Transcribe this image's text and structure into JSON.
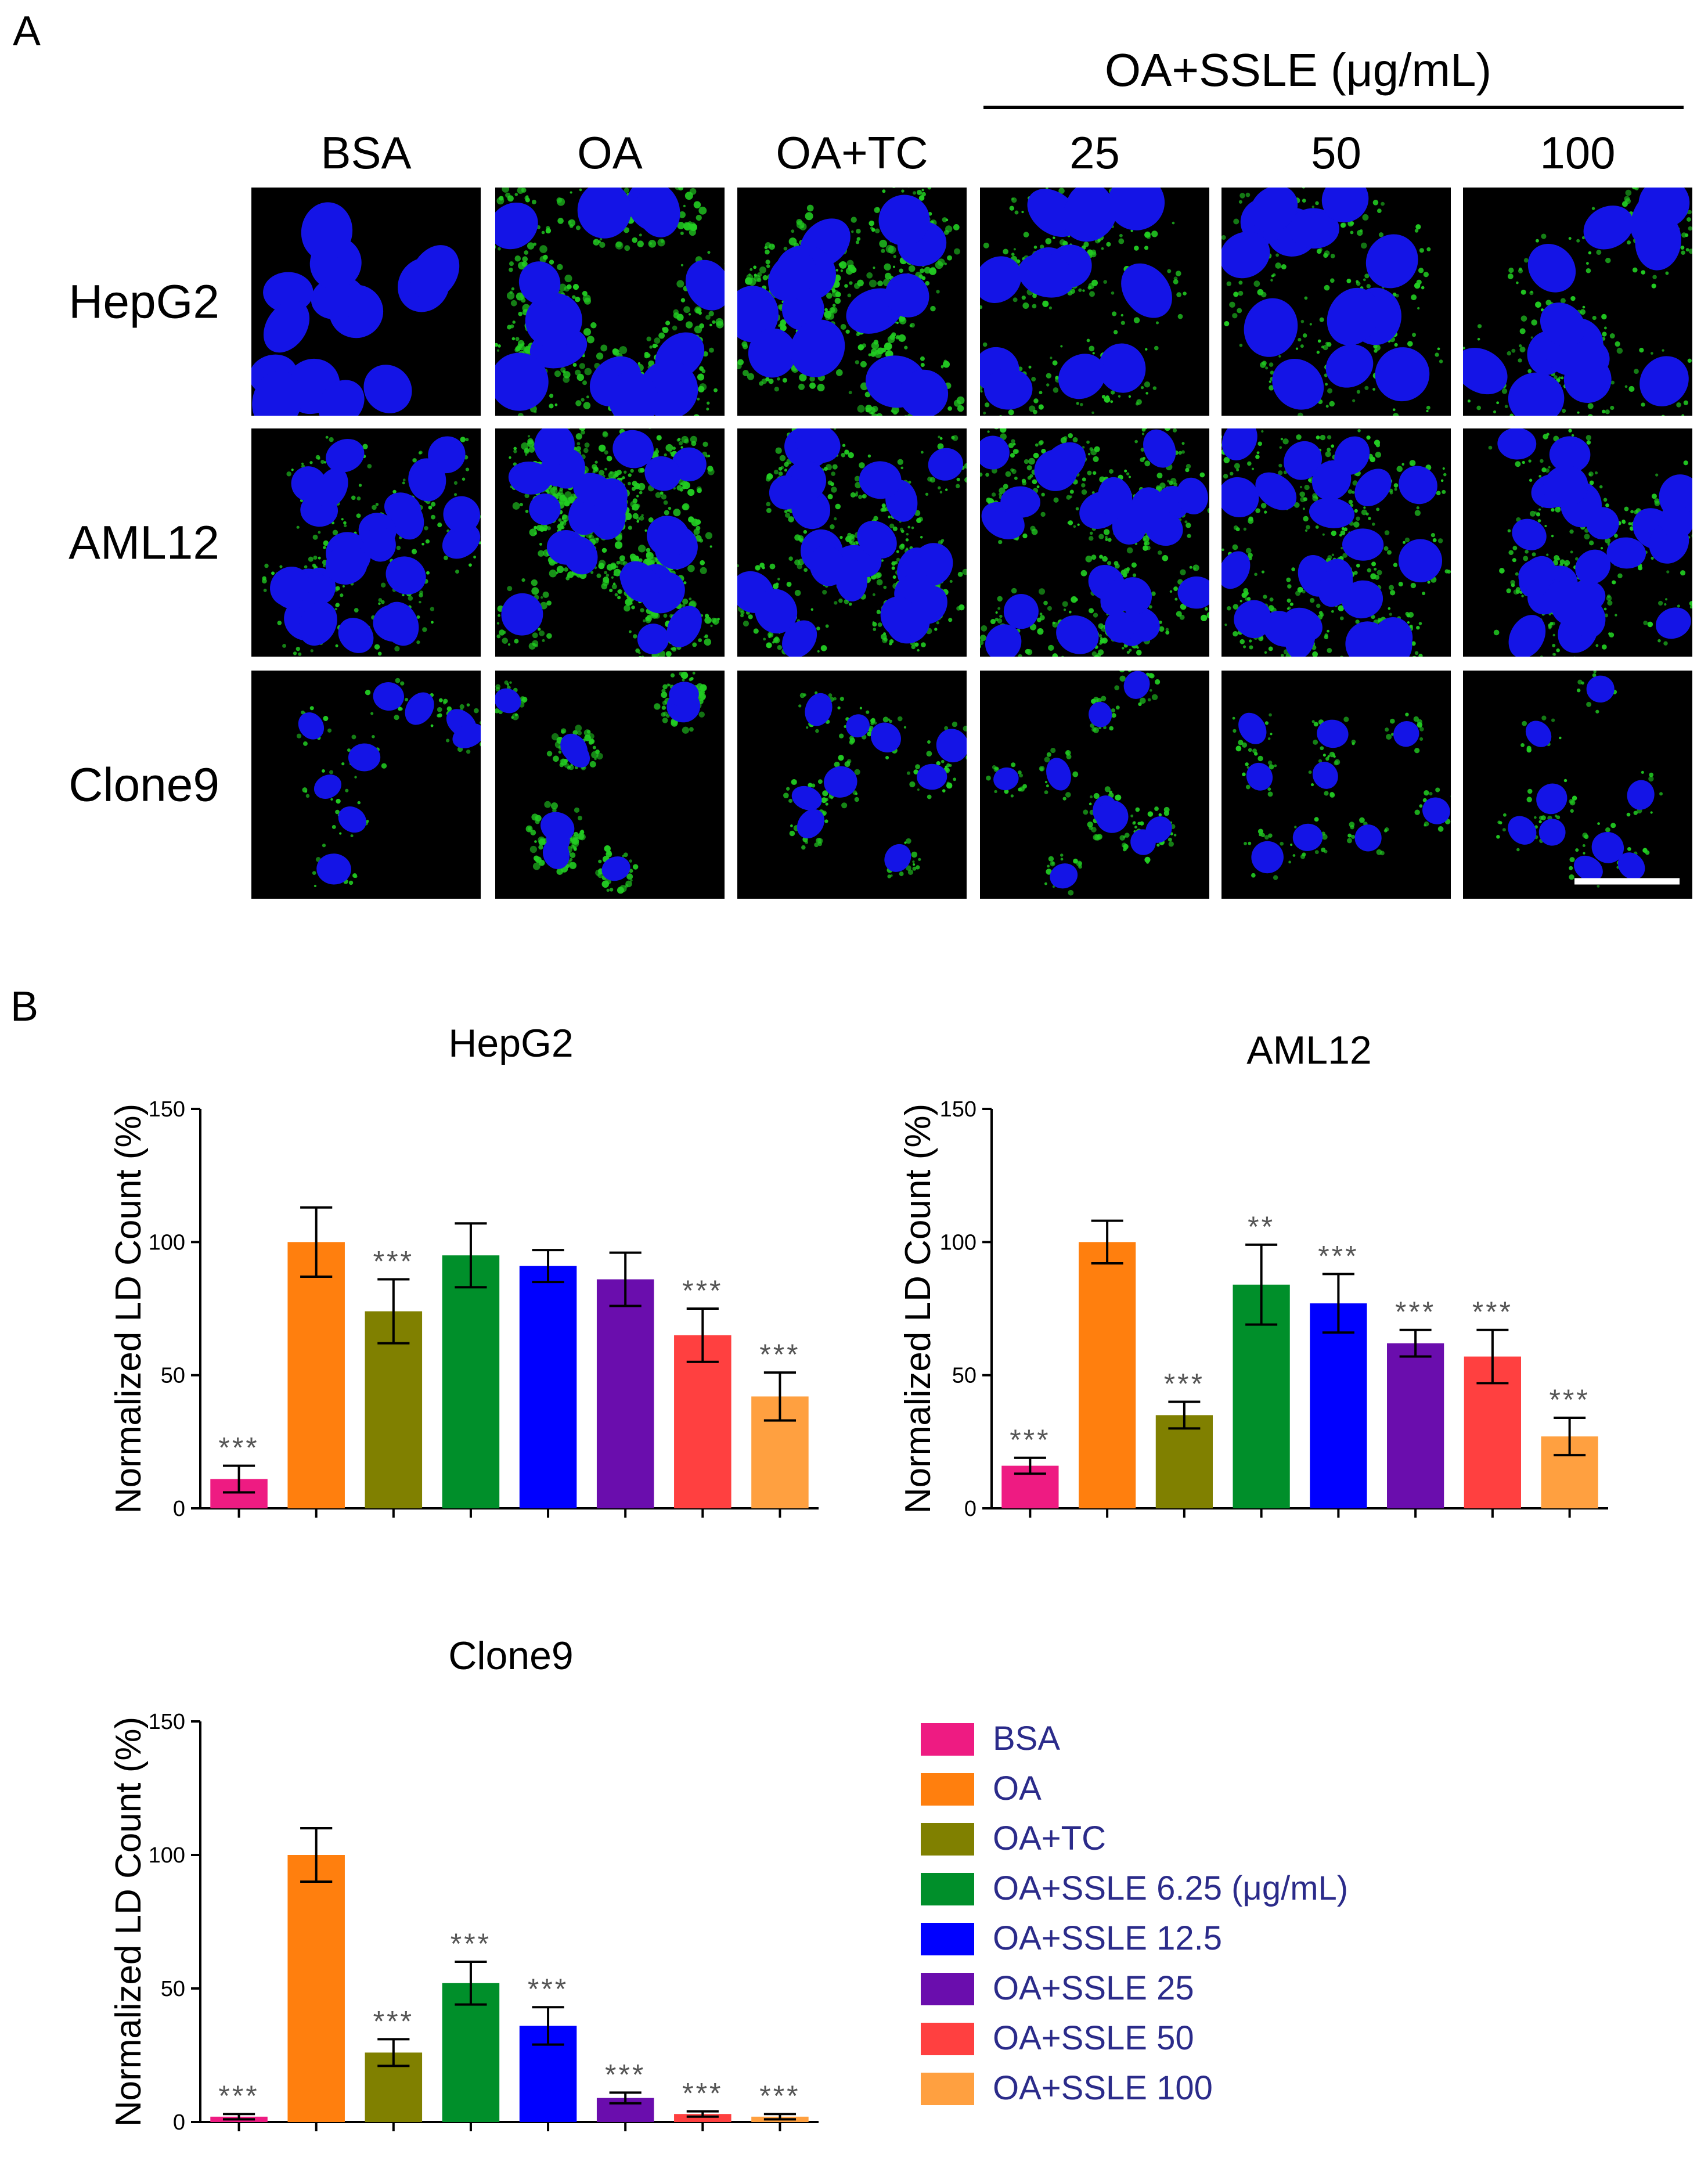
{
  "panel_a": {
    "label": "A",
    "group_header": "OA+SSLE (μg/mL)",
    "columns": [
      "BSA",
      "OA",
      "OA+TC",
      "25",
      "50",
      "100"
    ],
    "rows": [
      "HepG2",
      "AML12",
      "Clone9"
    ],
    "colors": {
      "nucleus": "#1414e6",
      "lipid": "#22cc22",
      "background": "#000000"
    },
    "intensity": [
      [
        0.0,
        1.0,
        1.0,
        0.55,
        0.5,
        0.45
      ],
      [
        0.25,
        0.9,
        0.55,
        0.6,
        0.45,
        0.35
      ],
      [
        0.25,
        0.8,
        0.45,
        0.45,
        0.35,
        0.25
      ]
    ]
  },
  "panel_b": {
    "label": "B"
  },
  "legend": {
    "entries": [
      {
        "label": "BSA",
        "color": "#ee1b82"
      },
      {
        "label": "OA",
        "color": "#ff7f0e"
      },
      {
        "label": "OA+TC",
        "color": "#808000"
      },
      {
        "label": "OA+SSLE 6.25 (μg/mL)",
        "color": "#008f2a"
      },
      {
        "label": "OA+SSLE 12.5",
        "color": "#0000ff"
      },
      {
        "label": "OA+SSLE 25",
        "color": "#6a0dad"
      },
      {
        "label": "OA+SSLE 50",
        "color": "#ff4040"
      },
      {
        "label": "OA+SSLE 100",
        "color": "#ffa040"
      }
    ],
    "text_color": "#2b2b8a"
  },
  "chart_data": [
    {
      "type": "bar",
      "title": "HepG2",
      "ylabel": "Normalized LD Count (%)",
      "ylim": [
        0,
        150
      ],
      "yticks": [
        0,
        50,
        100,
        150
      ],
      "categories": [
        "BSA",
        "OA",
        "OA+TC",
        "OA+SSLE 6.25",
        "OA+SSLE 12.5",
        "OA+SSLE 25",
        "OA+SSLE 50",
        "OA+SSLE 100"
      ],
      "values": [
        11,
        100,
        74,
        95,
        91,
        86,
        65,
        42
      ],
      "errors": [
        5,
        13,
        12,
        12,
        6,
        10,
        10,
        9
      ],
      "annotations": [
        "***",
        "",
        "***",
        "",
        "",
        "",
        "***",
        "***"
      ]
    },
    {
      "type": "bar",
      "title": "AML12",
      "ylabel": "Normalized LD Count (%)",
      "ylim": [
        0,
        150
      ],
      "yticks": [
        0,
        50,
        100,
        150
      ],
      "categories": [
        "BSA",
        "OA",
        "OA+TC",
        "OA+SSLE 6.25",
        "OA+SSLE 12.5",
        "OA+SSLE 25",
        "OA+SSLE 50",
        "OA+SSLE 100"
      ],
      "values": [
        16,
        100,
        35,
        84,
        77,
        62,
        57,
        27
      ],
      "errors": [
        3,
        8,
        5,
        15,
        11,
        5,
        10,
        7
      ],
      "annotations": [
        "***",
        "",
        "***",
        "**",
        "***",
        "***",
        "***",
        "***"
      ]
    },
    {
      "type": "bar",
      "title": "Clone9",
      "ylabel": "Normalized LD Count (%)",
      "ylim": [
        0,
        150
      ],
      "yticks": [
        0,
        50,
        100,
        150
      ],
      "categories": [
        "BSA",
        "OA",
        "OA+TC",
        "OA+SSLE 6.25",
        "OA+SSLE 12.5",
        "OA+SSLE 25",
        "OA+SSLE 50",
        "OA+SSLE 100"
      ],
      "values": [
        2,
        100,
        26,
        52,
        36,
        9,
        3,
        2
      ],
      "errors": [
        1,
        10,
        5,
        8,
        7,
        2,
        1,
        1
      ],
      "annotations": [
        "***",
        "",
        "***",
        "***",
        "***",
        "***",
        "***",
        "***"
      ]
    }
  ]
}
